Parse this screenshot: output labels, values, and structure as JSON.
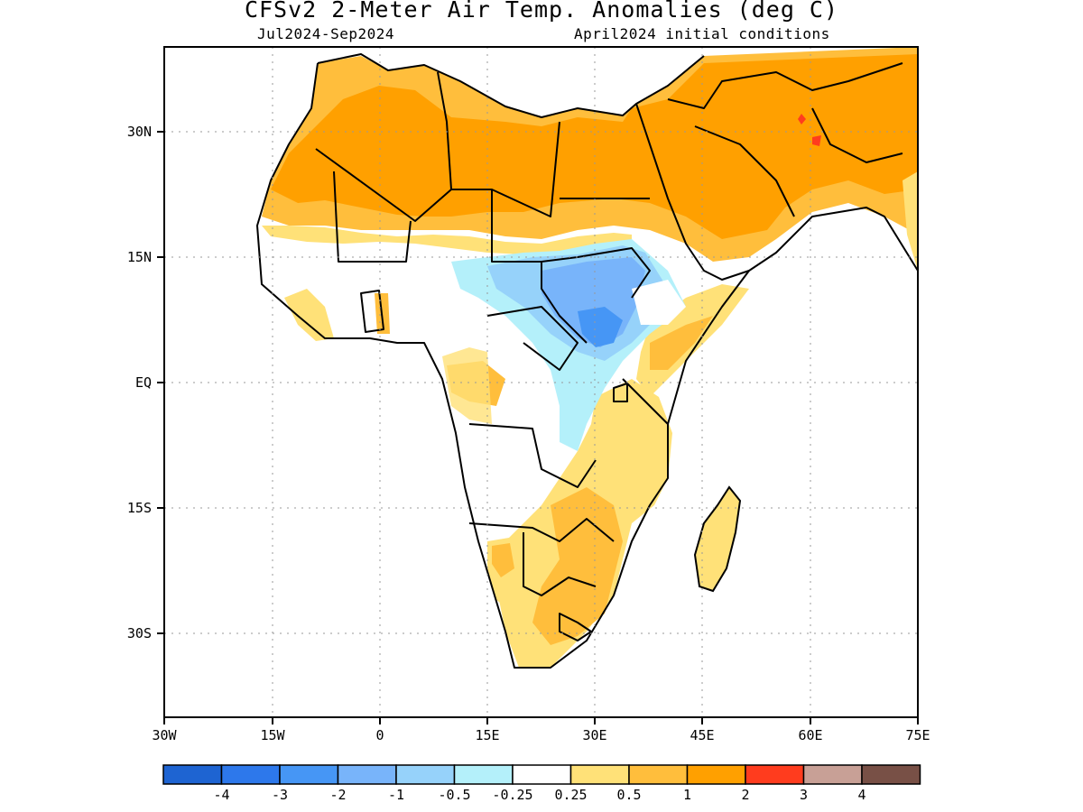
{
  "header": {
    "title": "CFSv2 2-Meter Air Temp. Anomalies (deg C)",
    "period": "Jul2024-Sep2024",
    "init": "April2024 initial conditions"
  },
  "axes": {
    "lon_ticks": [
      "30W",
      "15W",
      "0",
      "15E",
      "30E",
      "45E",
      "60E",
      "75E"
    ],
    "lat_ticks": [
      "30N",
      "15N",
      "EQ",
      "15S",
      "30S"
    ],
    "lon_range": [
      -30,
      75
    ],
    "lat_range": [
      -40,
      40
    ]
  },
  "legend": {
    "labels": [
      "-4",
      "-3",
      "-2",
      "-1",
      "-0.5",
      "-0.25",
      "0.25",
      "0.5",
      "1",
      "2",
      "3",
      "4"
    ],
    "colors": [
      "#1e64d2",
      "#2d78eb",
      "#4696f5",
      "#78b4fa",
      "#96d2fa",
      "#b4f0fa",
      "#ffffff",
      "#ffe178",
      "#ffbe3c",
      "#ffa000",
      "#ff3c1e",
      "#c8a096",
      "#785046"
    ]
  },
  "map_colors": {
    "warm_weak": "#ffe178",
    "warm_moderate": "#ffbe3c",
    "warm_strong": "#ffa000",
    "warm_extreme": "#ff3c1e",
    "cool_weak": "#b4f0fa",
    "cool_light": "#96d2fa",
    "cool_moderate": "#78b4fa",
    "cool_strong": "#4696f5"
  }
}
